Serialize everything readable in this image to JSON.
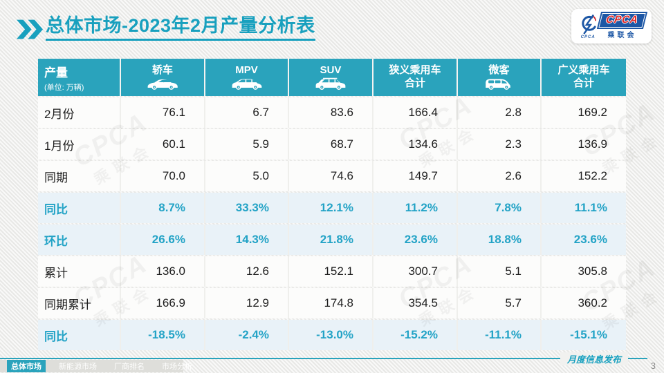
{
  "header": {
    "title_primary": "总体市场",
    "title_rest": "-2023年2月产量分析表"
  },
  "logo": {
    "brand": "CPCA",
    "brand_cn": "乘联会",
    "brand_sub": "CPCA"
  },
  "colors": {
    "teal": "#2aa3bc",
    "title_teal": "#18a0be",
    "percent_text": "#23a3c6",
    "percent_row_bg": "#e9f2f8",
    "logo_blue": "#1d57a5",
    "logo_red": "#e02424"
  },
  "watermark": {
    "en": "CPCA",
    "cn": "乘联会"
  },
  "table": {
    "header": {
      "label": "产量",
      "unit": "(单位: 万辆)",
      "columns": [
        {
          "key": "sedan",
          "label": "轿车",
          "icon": "sedan-icon"
        },
        {
          "key": "mpv",
          "label": "MPV",
          "icon": "mpv-icon"
        },
        {
          "key": "suv",
          "label": "SUV",
          "icon": "suv-icon"
        },
        {
          "key": "narrow-pv",
          "label": "狭义乘用车",
          "label2": "合计"
        },
        {
          "key": "minivan",
          "label": "微客",
          "icon": "van-icon"
        },
        {
          "key": "broad-pv",
          "label": "广义乘用车",
          "label2": "合计"
        }
      ]
    },
    "rows": [
      {
        "label": "2月份",
        "type": "data",
        "values": [
          "76.1",
          "6.7",
          "83.6",
          "166.4",
          "2.8",
          "169.2"
        ]
      },
      {
        "label": "1月份",
        "type": "data",
        "values": [
          "60.1",
          "5.9",
          "68.7",
          "134.6",
          "2.3",
          "136.9"
        ]
      },
      {
        "label": "同期",
        "type": "data",
        "values": [
          "70.0",
          "5.0",
          "74.6",
          "149.7",
          "2.6",
          "152.2"
        ]
      },
      {
        "label": "同比",
        "type": "percent",
        "values": [
          "8.7%",
          "33.3%",
          "12.1%",
          "11.2%",
          "7.8%",
          "11.1%"
        ]
      },
      {
        "label": "环比",
        "type": "percent",
        "values": [
          "26.6%",
          "14.3%",
          "21.8%",
          "23.6%",
          "18.8%",
          "23.6%"
        ]
      },
      {
        "label": "累计",
        "type": "data",
        "values": [
          "136.0",
          "12.6",
          "152.1",
          "300.7",
          "5.1",
          "305.8"
        ]
      },
      {
        "label": "同期累计",
        "type": "data",
        "values": [
          "166.9",
          "12.9",
          "174.8",
          "354.5",
          "5.7",
          "360.2"
        ]
      },
      {
        "label": "同比",
        "type": "percent",
        "values": [
          "-18.5%",
          "-2.4%",
          "-13.0%",
          "-15.2%",
          "-11.1%",
          "-15.1%"
        ]
      }
    ]
  },
  "footer_nav": [
    {
      "label": "总体市场",
      "active": true
    },
    {
      "label": "新能源市场",
      "active": false
    },
    {
      "label": "厂商排名",
      "active": false
    },
    {
      "label": "市场分析",
      "active": false
    }
  ],
  "footer": {
    "note": "月度信息发布",
    "page_number": "3"
  },
  "chart_data": {
    "type": "table",
    "title": "总体市场-2023年2月产量分析表",
    "unit": "万辆",
    "columns": [
      "轿车",
      "MPV",
      "SUV",
      "狭义乘用车合计",
      "微客",
      "广义乘用车合计"
    ],
    "rows": [
      {
        "label": "2月份",
        "values": [
          76.1,
          6.7,
          83.6,
          166.4,
          2.8,
          169.2
        ]
      },
      {
        "label": "1月份",
        "values": [
          60.1,
          5.9,
          68.7,
          134.6,
          2.3,
          136.9
        ]
      },
      {
        "label": "同期",
        "values": [
          70.0,
          5.0,
          74.6,
          149.7,
          2.6,
          152.2
        ]
      },
      {
        "label": "同比",
        "values": [
          "8.7%",
          "33.3%",
          "12.1%",
          "11.2%",
          "7.8%",
          "11.1%"
        ]
      },
      {
        "label": "环比",
        "values": [
          "26.6%",
          "14.3%",
          "21.8%",
          "23.6%",
          "18.8%",
          "23.6%"
        ]
      },
      {
        "label": "累计",
        "values": [
          136.0,
          12.6,
          152.1,
          300.7,
          5.1,
          305.8
        ]
      },
      {
        "label": "同期累计",
        "values": [
          166.9,
          12.9,
          174.8,
          354.5,
          5.7,
          360.2
        ]
      },
      {
        "label": "同比",
        "values": [
          "-18.5%",
          "-2.4%",
          "-13.0%",
          "-15.2%",
          "-11.1%",
          "-15.1%"
        ]
      }
    ]
  }
}
